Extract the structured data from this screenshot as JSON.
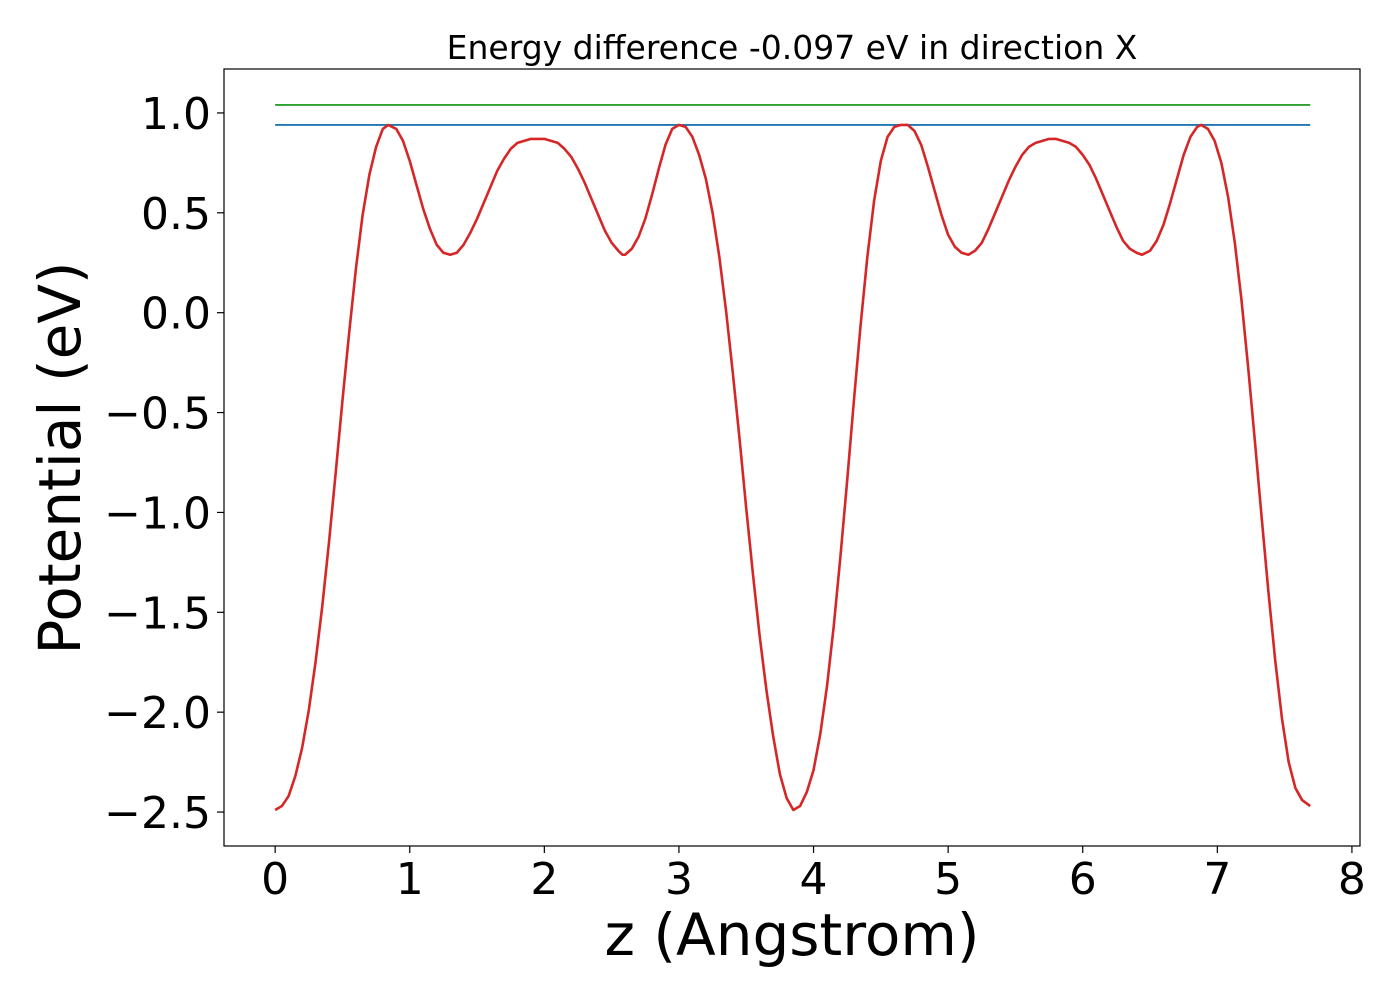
{
  "chart_data": {
    "type": "line",
    "title": "Energy difference -0.097 eV in direction X",
    "xlabel": "z (Angstrom)",
    "ylabel": "Potential (eV)",
    "xlim": [
      -0.38,
      8.06
    ],
    "ylim": [
      -2.67,
      1.22
    ],
    "xticks": [
      0,
      1,
      2,
      3,
      4,
      5,
      6,
      7,
      8
    ],
    "xtick_labels": [
      "0",
      "1",
      "2",
      "3",
      "4",
      "5",
      "6",
      "7",
      "8"
    ],
    "yticks": [
      1.0,
      0.5,
      0.0,
      -0.5,
      -1.0,
      -1.5,
      -2.0,
      -2.5
    ],
    "ytick_labels": [
      "1.0",
      "0.5",
      "0.0",
      "−0.5",
      "−1.0",
      "−1.5",
      "−2.0",
      "−2.5"
    ],
    "grid": false,
    "series": [
      {
        "color": "#2ca02c",
        "points": [
          [
            0.0,
            1.04
          ],
          [
            7.69,
            1.04
          ]
        ]
      },
      {
        "color": "#1f77b4",
        "points": [
          [
            0.0,
            0.94
          ],
          [
            7.69,
            0.94
          ]
        ]
      },
      {
        "color": "#d62728",
        "points": [
          [
            0.0,
            -2.49
          ],
          [
            0.05,
            -2.47
          ],
          [
            0.1,
            -2.42
          ],
          [
            0.15,
            -2.32
          ],
          [
            0.2,
            -2.18
          ],
          [
            0.25,
            -1.99
          ],
          [
            0.3,
            -1.75
          ],
          [
            0.35,
            -1.47
          ],
          [
            0.4,
            -1.15
          ],
          [
            0.45,
            -0.8
          ],
          [
            0.5,
            -0.44
          ],
          [
            0.55,
            -0.1
          ],
          [
            0.6,
            0.22
          ],
          [
            0.65,
            0.49
          ],
          [
            0.7,
            0.69
          ],
          [
            0.75,
            0.83
          ],
          [
            0.8,
            0.92
          ],
          [
            0.84,
            0.94
          ],
          [
            0.9,
            0.92
          ],
          [
            0.95,
            0.86
          ],
          [
            1.0,
            0.76
          ],
          [
            1.05,
            0.64
          ],
          [
            1.1,
            0.52
          ],
          [
            1.15,
            0.42
          ],
          [
            1.2,
            0.34
          ],
          [
            1.25,
            0.3
          ],
          [
            1.3,
            0.29
          ],
          [
            1.35,
            0.3
          ],
          [
            1.4,
            0.34
          ],
          [
            1.45,
            0.4
          ],
          [
            1.5,
            0.47
          ],
          [
            1.55,
            0.55
          ],
          [
            1.6,
            0.63
          ],
          [
            1.65,
            0.71
          ],
          [
            1.7,
            0.77
          ],
          [
            1.75,
            0.82
          ],
          [
            1.8,
            0.85
          ],
          [
            1.85,
            0.86
          ],
          [
            1.9,
            0.87
          ],
          [
            1.95,
            0.87
          ],
          [
            2.0,
            0.87
          ],
          [
            2.05,
            0.86
          ],
          [
            2.1,
            0.85
          ],
          [
            2.15,
            0.82
          ],
          [
            2.2,
            0.78
          ],
          [
            2.25,
            0.72
          ],
          [
            2.3,
            0.65
          ],
          [
            2.35,
            0.57
          ],
          [
            2.4,
            0.49
          ],
          [
            2.45,
            0.41
          ],
          [
            2.5,
            0.35
          ],
          [
            2.55,
            0.31
          ],
          [
            2.58,
            0.29
          ],
          [
            2.6,
            0.29
          ],
          [
            2.65,
            0.32
          ],
          [
            2.7,
            0.38
          ],
          [
            2.75,
            0.47
          ],
          [
            2.8,
            0.59
          ],
          [
            2.85,
            0.72
          ],
          [
            2.9,
            0.84
          ],
          [
            2.95,
            0.92
          ],
          [
            3.0,
            0.94
          ],
          [
            3.05,
            0.93
          ],
          [
            3.1,
            0.88
          ],
          [
            3.15,
            0.79
          ],
          [
            3.2,
            0.67
          ],
          [
            3.25,
            0.5
          ],
          [
            3.3,
            0.28
          ],
          [
            3.35,
            0.01
          ],
          [
            3.4,
            -0.3
          ],
          [
            3.45,
            -0.63
          ],
          [
            3.5,
            -0.98
          ],
          [
            3.55,
            -1.31
          ],
          [
            3.6,
            -1.62
          ],
          [
            3.65,
            -1.89
          ],
          [
            3.7,
            -2.12
          ],
          [
            3.75,
            -2.31
          ],
          [
            3.8,
            -2.43
          ],
          [
            3.85,
            -2.49
          ],
          [
            3.9,
            -2.47
          ],
          [
            3.95,
            -2.4
          ],
          [
            4.0,
            -2.29
          ],
          [
            4.05,
            -2.11
          ],
          [
            4.1,
            -1.87
          ],
          [
            4.15,
            -1.57
          ],
          [
            4.2,
            -1.22
          ],
          [
            4.25,
            -0.84
          ],
          [
            4.3,
            -0.44
          ],
          [
            4.35,
            -0.06
          ],
          [
            4.4,
            0.28
          ],
          [
            4.45,
            0.56
          ],
          [
            4.5,
            0.76
          ],
          [
            4.55,
            0.88
          ],
          [
            4.6,
            0.93
          ],
          [
            4.65,
            0.94
          ],
          [
            4.7,
            0.94
          ],
          [
            4.75,
            0.91
          ],
          [
            4.8,
            0.84
          ],
          [
            4.85,
            0.73
          ],
          [
            4.9,
            0.61
          ],
          [
            4.95,
            0.49
          ],
          [
            5.0,
            0.39
          ],
          [
            5.05,
            0.33
          ],
          [
            5.1,
            0.3
          ],
          [
            5.15,
            0.29
          ],
          [
            5.2,
            0.31
          ],
          [
            5.25,
            0.35
          ],
          [
            5.3,
            0.42
          ],
          [
            5.35,
            0.5
          ],
          [
            5.4,
            0.58
          ],
          [
            5.45,
            0.66
          ],
          [
            5.5,
            0.73
          ],
          [
            5.55,
            0.79
          ],
          [
            5.6,
            0.83
          ],
          [
            5.65,
            0.85
          ],
          [
            5.7,
            0.86
          ],
          [
            5.75,
            0.87
          ],
          [
            5.8,
            0.87
          ],
          [
            5.85,
            0.86
          ],
          [
            5.9,
            0.85
          ],
          [
            5.95,
            0.83
          ],
          [
            6.0,
            0.79
          ],
          [
            6.05,
            0.74
          ],
          [
            6.1,
            0.67
          ],
          [
            6.15,
            0.59
          ],
          [
            6.2,
            0.51
          ],
          [
            6.25,
            0.43
          ],
          [
            6.3,
            0.36
          ],
          [
            6.35,
            0.32
          ],
          [
            6.4,
            0.3
          ],
          [
            6.44,
            0.29
          ],
          [
            6.5,
            0.31
          ],
          [
            6.55,
            0.36
          ],
          [
            6.6,
            0.44
          ],
          [
            6.65,
            0.55
          ],
          [
            6.7,
            0.67
          ],
          [
            6.75,
            0.79
          ],
          [
            6.8,
            0.88
          ],
          [
            6.85,
            0.93
          ],
          [
            6.88,
            0.94
          ],
          [
            6.93,
            0.92
          ],
          [
            6.98,
            0.86
          ],
          [
            7.03,
            0.75
          ],
          [
            7.08,
            0.58
          ],
          [
            7.13,
            0.35
          ],
          [
            7.18,
            0.06
          ],
          [
            7.23,
            -0.28
          ],
          [
            7.28,
            -0.65
          ],
          [
            7.33,
            -1.03
          ],
          [
            7.38,
            -1.4
          ],
          [
            7.43,
            -1.74
          ],
          [
            7.48,
            -2.03
          ],
          [
            7.53,
            -2.25
          ],
          [
            7.58,
            -2.38
          ],
          [
            7.63,
            -2.44
          ],
          [
            7.69,
            -2.47
          ]
        ]
      }
    ]
  }
}
